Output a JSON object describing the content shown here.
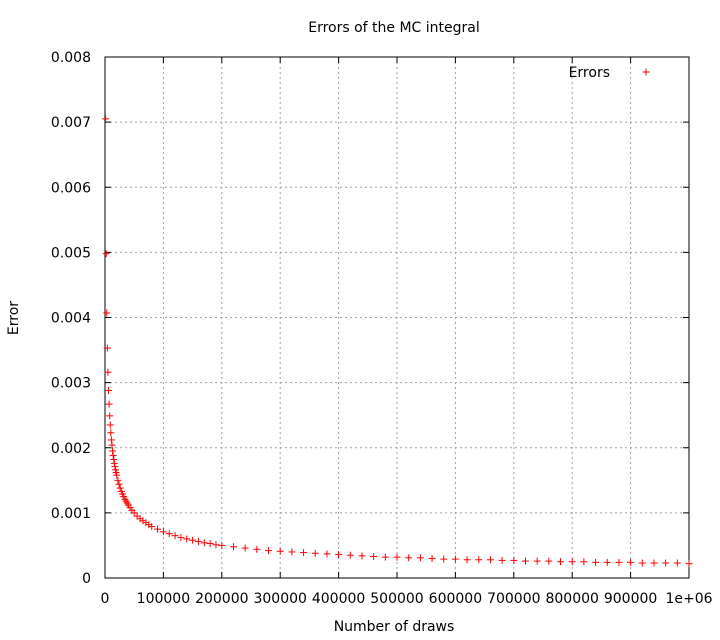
{
  "chart_data": {
    "type": "scatter",
    "title": "Errors of the MC integral",
    "xlabel": "Number of draws",
    "ylabel": "Error",
    "xlim": [
      0,
      1000000
    ],
    "ylim": [
      0,
      0.008
    ],
    "x_ticks": [
      0,
      100000,
      200000,
      300000,
      400000,
      500000,
      600000,
      700000,
      800000,
      900000,
      1000000
    ],
    "x_tick_labels": [
      "0",
      "100000",
      "200000",
      "300000",
      "400000",
      "500000",
      "600000",
      "700000",
      "800000",
      "900000",
      "1e+06"
    ],
    "y_ticks": [
      0,
      0.001,
      0.002,
      0.003,
      0.004,
      0.005,
      0.006,
      0.007,
      0.008
    ],
    "y_tick_labels": [
      "0",
      "0.001",
      "0.002",
      "0.003",
      "0.004",
      "0.005",
      "0.006",
      "0.007",
      "0.008"
    ],
    "grid": true,
    "legend_position": "top-right",
    "series": [
      {
        "name": "Errors",
        "color": "#ff0000",
        "marker": "plus",
        "x": [
          1000,
          2000,
          3000,
          4000,
          5000,
          6000,
          7000,
          8000,
          9000,
          10000,
          11000,
          12000,
          13000,
          14000,
          15000,
          16000,
          17000,
          18000,
          19000,
          20000,
          22000,
          24000,
          26000,
          28000,
          30000,
          32000,
          34000,
          36000,
          38000,
          40000,
          43000,
          46000,
          50000,
          55000,
          60000,
          65000,
          70000,
          75000,
          80000,
          90000,
          100000,
          110000,
          120000,
          130000,
          140000,
          150000,
          160000,
          170000,
          180000,
          190000,
          200000,
          220000,
          240000,
          260000,
          280000,
          300000,
          320000,
          340000,
          360000,
          380000,
          400000,
          420000,
          440000,
          460000,
          480000,
          500000,
          520000,
          540000,
          560000,
          580000,
          600000,
          620000,
          640000,
          660000,
          680000,
          700000,
          720000,
          740000,
          760000,
          780000,
          800000,
          820000,
          840000,
          860000,
          880000,
          900000,
          920000,
          940000,
          960000,
          980000,
          1000000
        ],
        "y": [
          0.00705,
          0.00498,
          0.00407,
          0.00353,
          0.00316,
          0.00288,
          0.00267,
          0.00249,
          0.00235,
          0.00223,
          0.00212,
          0.00204,
          0.00195,
          0.00188,
          0.00182,
          0.00176,
          0.00171,
          0.00166,
          0.00162,
          0.00158,
          0.0015,
          0.00144,
          0.00138,
          0.00133,
          0.00129,
          0.00125,
          0.00121,
          0.00118,
          0.00115,
          0.00112,
          0.00108,
          0.00104,
          0.001,
          0.00095,
          0.00091,
          0.00088,
          0.00085,
          0.00082,
          0.00079,
          0.00075,
          0.00071,
          0.00068,
          0.00065,
          0.00062,
          0.0006,
          0.00058,
          0.00056,
          0.00054,
          0.00053,
          0.00051,
          0.0005,
          0.00048,
          0.00046,
          0.00044,
          0.00042,
          0.00041,
          0.0004,
          0.00039,
          0.00038,
          0.00037,
          0.00036,
          0.00035,
          0.00034,
          0.00033,
          0.00032,
          0.00032,
          0.00031,
          0.00031,
          0.0003,
          0.00029,
          0.00029,
          0.00028,
          0.00028,
          0.00028,
          0.00027,
          0.00027,
          0.00026,
          0.00026,
          0.00026,
          0.00025,
          0.00025,
          0.00025,
          0.00024,
          0.00024,
          0.00024,
          0.00024,
          0.00023,
          0.00023,
          0.00023,
          0.00023,
          0.00022
        ]
      }
    ]
  }
}
